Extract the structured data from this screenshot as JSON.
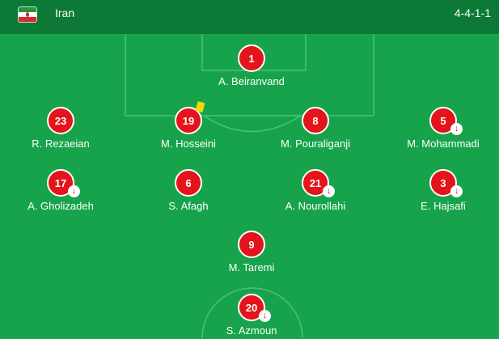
{
  "team": {
    "name": "Iran",
    "formation": "4-4-1-1",
    "flag_icon": "iran-flag-icon"
  },
  "colors": {
    "pitch": "#17a34c",
    "header": "#0c7a36",
    "player_circle": "#e3141b",
    "yellow_card": "#f5d90a"
  },
  "players": [
    {
      "number": "1",
      "name": "A. Beiranvand",
      "sub": false,
      "yellow": false
    },
    {
      "number": "23",
      "name": "R. Rezaeian",
      "sub": false,
      "yellow": false
    },
    {
      "number": "19",
      "name": "M. Hosseini",
      "sub": false,
      "yellow": true
    },
    {
      "number": "8",
      "name": "M. Pouraliganji",
      "sub": false,
      "yellow": false
    },
    {
      "number": "5",
      "name": "M. Mohammadi",
      "sub": true,
      "yellow": false
    },
    {
      "number": "17",
      "name": "A. Gholizadeh",
      "sub": true,
      "yellow": false
    },
    {
      "number": "6",
      "name": "S. Afagh",
      "sub": false,
      "yellow": false
    },
    {
      "number": "21",
      "name": "A. Nourollahi",
      "sub": true,
      "yellow": false
    },
    {
      "number": "3",
      "name": "E. Hajsafi",
      "sub": true,
      "yellow": false
    },
    {
      "number": "9",
      "name": "M. Taremi",
      "sub": false,
      "yellow": false
    },
    {
      "number": "20",
      "name": "S. Azmoun",
      "sub": true,
      "yellow": false
    }
  ],
  "sub_icon_glyph": "↓"
}
